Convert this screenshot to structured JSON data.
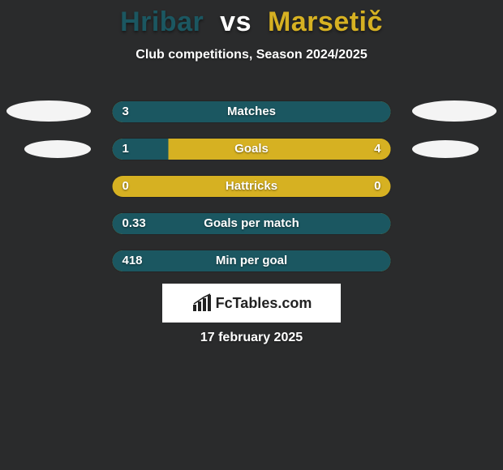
{
  "colors": {
    "background": "#2a2b2c",
    "player1": "#1b5761",
    "player2": "#d6b122",
    "ellipse": "#f4f4f4",
    "page_text": "#ffffff",
    "bar_base": "#d6b122",
    "logo_bg": "#ffffff",
    "logo_text": "#222222"
  },
  "header": {
    "player1": "Hribar",
    "vs": "vs",
    "player2": "Marsetič",
    "subtitle": "Club competitions, Season 2024/2025"
  },
  "stats": [
    {
      "label": "Matches",
      "left_text": "3",
      "right_text": "",
      "left_pct": 100,
      "right_pct": 0,
      "show_ellipse": "big"
    },
    {
      "label": "Goals",
      "left_text": "1",
      "right_text": "4",
      "left_pct": 20,
      "right_pct": 80,
      "show_ellipse": "small"
    },
    {
      "label": "Hattricks",
      "left_text": "0",
      "right_text": "0",
      "left_pct": 0,
      "right_pct": 0,
      "show_ellipse": "none"
    },
    {
      "label": "Goals per match",
      "left_text": "0.33",
      "right_text": "",
      "left_pct": 100,
      "right_pct": 0,
      "show_ellipse": "none"
    },
    {
      "label": "Min per goal",
      "left_text": "418",
      "right_text": "",
      "left_pct": 100,
      "right_pct": 0,
      "show_ellipse": "none"
    }
  ],
  "logo": {
    "text": "FcTables.com"
  },
  "date": "17 february 2025"
}
